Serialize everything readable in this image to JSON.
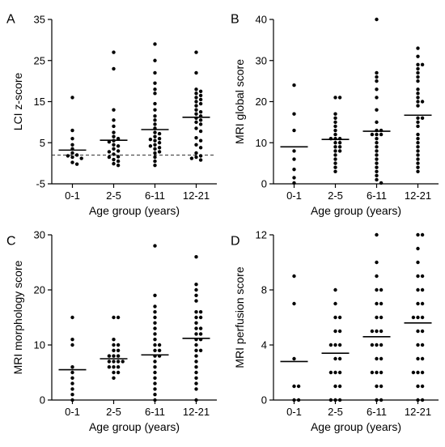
{
  "figure": {
    "panels": [
      {
        "letter": "A"
      },
      {
        "letter": "B"
      },
      {
        "letter": "C"
      },
      {
        "letter": "D"
      }
    ]
  },
  "chart_data": [
    {
      "type": "scatter",
      "subtype": "dot-plot-with-median",
      "title": "",
      "xlabel": "Age group (years)",
      "ylabel": "LCI z-score",
      "categories": [
        "0-1",
        "2-5",
        "6-11",
        "12-21"
      ],
      "ylim": [
        -5,
        35
      ],
      "yticks": [
        -5,
        5,
        15,
        25,
        35
      ],
      "reference_line": {
        "y": 2,
        "style": "dashed"
      },
      "medians": [
        3.2,
        5.6,
        8.2,
        11.2
      ],
      "points": [
        [
          16,
          8,
          6,
          4.5,
          3.5,
          2.5,
          2.0,
          1.8,
          1.5,
          1.2,
          0.2,
          -0.2
        ],
        [
          27,
          23,
          13,
          10.5,
          9,
          7.5,
          6.5,
          6,
          5.5,
          5.2,
          4.5,
          4.2,
          3.5,
          3.0,
          2.8,
          2.2,
          1.6,
          1.5,
          0.9,
          0.5,
          -0.1,
          -0.5
        ],
        [
          29,
          25,
          22,
          19.5,
          18,
          17,
          14.5,
          13,
          11.5,
          10.5,
          9.5,
          8.5,
          7.5,
          7.2,
          6.5,
          6.0,
          5.8,
          5.5,
          5.0,
          4.5,
          4.2,
          3.8,
          3.5,
          2.8,
          2.5,
          1.5,
          0.5,
          -0.5
        ],
        [
          27,
          22,
          18,
          17.5,
          17,
          16.5,
          16,
          15.5,
          15,
          14.5,
          14,
          13,
          12.5,
          12,
          11.5,
          11,
          10.5,
          10,
          9.5,
          8.5,
          7.8,
          6.2,
          5.5,
          4.5,
          3.8,
          2.5,
          1.8,
          1.5,
          1.2,
          0.8
        ]
      ]
    },
    {
      "type": "scatter",
      "subtype": "dot-plot-with-median",
      "title": "",
      "xlabel": "Age group (years)",
      "ylabel": "MRI global score",
      "categories": [
        "0-1",
        "2-5",
        "6-11",
        "12-21"
      ],
      "ylim": [
        0,
        40
      ],
      "yticks": [
        0,
        10,
        20,
        30,
        40
      ],
      "medians": [
        9,
        10.8,
        12.8,
        16.7
      ],
      "points": [
        [
          24,
          17,
          13,
          8,
          6,
          3.5,
          1.5,
          0.2
        ],
        [
          21,
          21,
          17,
          16,
          15,
          14,
          13,
          12,
          11,
          11,
          11,
          10,
          10,
          9,
          9,
          8,
          8,
          7,
          6,
          5,
          4,
          3
        ],
        [
          40,
          27,
          26,
          25,
          23,
          21,
          18,
          15,
          13,
          13,
          12,
          12,
          12,
          11,
          10,
          9,
          8,
          7,
          6,
          5,
          4,
          3,
          2,
          1,
          0.2
        ],
        [
          33,
          31,
          29,
          29,
          28,
          27,
          26,
          25,
          23,
          22,
          21,
          20,
          20,
          19,
          16,
          16,
          15,
          14,
          12,
          11,
          10,
          9,
          8,
          7,
          6,
          5,
          4,
          3
        ]
      ]
    },
    {
      "type": "scatter",
      "subtype": "dot-plot-with-median",
      "title": "",
      "xlabel": "Age group (years)",
      "ylabel": "MRI morphology score",
      "categories": [
        "0-1",
        "2-5",
        "6-11",
        "12-21"
      ],
      "ylim": [
        0,
        30
      ],
      "yticks": [
        0,
        10,
        20,
        30
      ],
      "medians": [
        5.5,
        7.5,
        8.2,
        11.2
      ],
      "points": [
        [
          15,
          11,
          10,
          6,
          5,
          4,
          3,
          2,
          1,
          0
        ],
        [
          15,
          15,
          11,
          10,
          10,
          9,
          9,
          8,
          8,
          8,
          7,
          7,
          7,
          7,
          6,
          6,
          6,
          5,
          5,
          4
        ],
        [
          28,
          19,
          17,
          16,
          15,
          14,
          13,
          12,
          11,
          10,
          10,
          9,
          9,
          8,
          8,
          7,
          6,
          5,
          4,
          3,
          2,
          1,
          0
        ],
        [
          26,
          21,
          20,
          19,
          18,
          16,
          16,
          15,
          15,
          14,
          13,
          13,
          12,
          12,
          11,
          11,
          10,
          9,
          9,
          8,
          7,
          6,
          5,
          4,
          3,
          2,
          0
        ]
      ]
    },
    {
      "type": "scatter",
      "subtype": "dot-plot-with-median",
      "title": "",
      "xlabel": "Age group (years)",
      "ylabel": "MRI perfusion score",
      "categories": [
        "0-1",
        "2-5",
        "6-11",
        "12-21"
      ],
      "ylim": [
        0,
        12
      ],
      "yticks": [
        0,
        4,
        8,
        12
      ],
      "medians": [
        2.8,
        3.4,
        4.6,
        5.6
      ],
      "points": [
        [
          9,
          7,
          3,
          1,
          1,
          0,
          0
        ],
        [
          8,
          7,
          6,
          6,
          5,
          5,
          4,
          4,
          4,
          3,
          3,
          2,
          2,
          2,
          1,
          1,
          0,
          0,
          0
        ],
        [
          12,
          10,
          9,
          8,
          8,
          7,
          7,
          6,
          6,
          5,
          5,
          5,
          4,
          4,
          4,
          3,
          3,
          2,
          2,
          2,
          1,
          1,
          0,
          0
        ],
        [
          12,
          12,
          11,
          10,
          9,
          9,
          8,
          8,
          7,
          7,
          6,
          6,
          6,
          5,
          5,
          4,
          4,
          3,
          3,
          2,
          2,
          2,
          1,
          1,
          0,
          0
        ]
      ]
    }
  ]
}
